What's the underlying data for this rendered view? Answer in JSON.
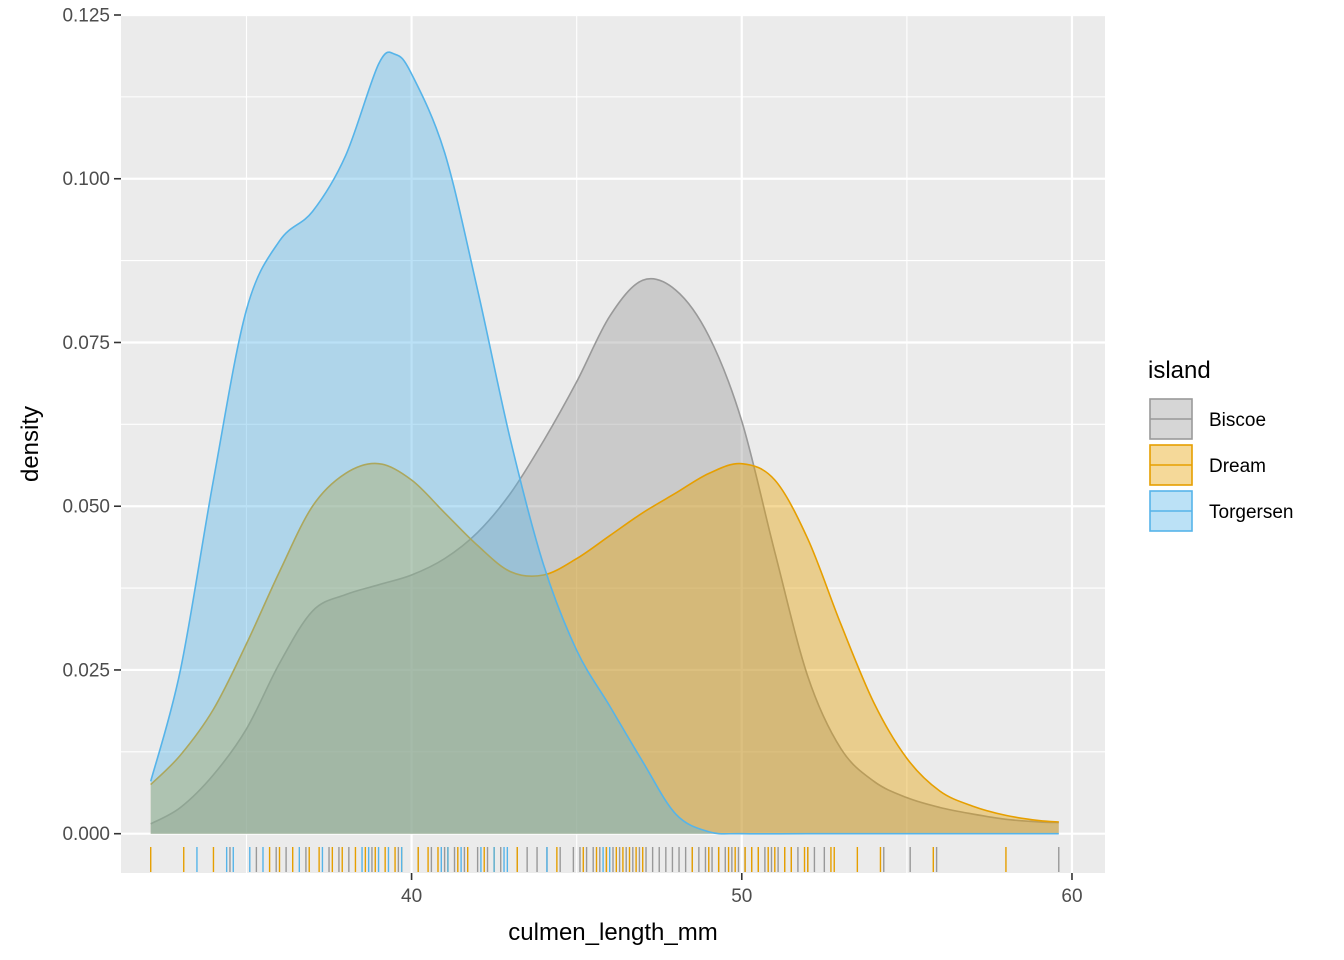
{
  "chart_data": {
    "type": "area",
    "subtype": "density",
    "xlabel": "culmen_length_mm",
    "ylabel": "density",
    "xlim": [
      31.2,
      61.0
    ],
    "ylim": [
      -0.006,
      0.125
    ],
    "x_ticks": [
      40,
      50,
      60
    ],
    "x_tick_labels": [
      "40",
      "50",
      "60"
    ],
    "y_ticks": [
      0,
      0.025,
      0.05,
      0.075,
      0.1,
      0.125
    ],
    "y_tick_labels": [
      "0.000",
      "0.025",
      "0.050",
      "0.075",
      "0.100",
      "0.125"
    ],
    "grid": true,
    "legend": {
      "title": "island",
      "position": "right",
      "fill_alpha": 0.4
    },
    "series": [
      {
        "name": "Biscoe",
        "color": "#999999",
        "points": [
          [
            32.1,
            0.0015
          ],
          [
            33,
            0.004
          ],
          [
            34,
            0.009
          ],
          [
            35,
            0.016
          ],
          [
            36,
            0.026
          ],
          [
            37,
            0.034
          ],
          [
            38,
            0.0365
          ],
          [
            39,
            0.038
          ],
          [
            40,
            0.0395
          ],
          [
            41,
            0.042
          ],
          [
            42,
            0.046
          ],
          [
            43,
            0.052
          ],
          [
            44,
            0.06
          ],
          [
            45,
            0.069
          ],
          [
            46,
            0.079
          ],
          [
            47,
            0.0845
          ],
          [
            48,
            0.083
          ],
          [
            49,
            0.076
          ],
          [
            50,
            0.063
          ],
          [
            51,
            0.043
          ],
          [
            52,
            0.024
          ],
          [
            53,
            0.013
          ],
          [
            54,
            0.008
          ],
          [
            55,
            0.0055
          ],
          [
            56,
            0.004
          ],
          [
            57,
            0.003
          ],
          [
            58,
            0.0022
          ],
          [
            59,
            0.0018
          ],
          [
            59.6,
            0.0017
          ]
        ],
        "rug": [
          34.5,
          35.3,
          35.9,
          36.2,
          36.8,
          37.5,
          37.8,
          38.1,
          38.8,
          39.6,
          40.2,
          40.6,
          41.0,
          41.3,
          41.6,
          42.0,
          42.3,
          42.7,
          43.2,
          43.5,
          43.8,
          44.1,
          44.5,
          44.9,
          45.1,
          45.3,
          45.5,
          45.7,
          45.9,
          46.1,
          46.3,
          46.5,
          46.7,
          46.9,
          47.1,
          47.3,
          47.5,
          47.7,
          47.9,
          48.1,
          48.3,
          48.5,
          48.7,
          48.9,
          49.1,
          49.3,
          49.5,
          49.7,
          49.9,
          50.1,
          50.3,
          50.5,
          50.7,
          50.9,
          51.1,
          51.3,
          51.5,
          51.7,
          52.0,
          52.2,
          52.5,
          54.3,
          55.1,
          55.9,
          59.6
        ]
      },
      {
        "name": "Dream",
        "color": "#E69F00",
        "points": [
          [
            32.1,
            0.0075
          ],
          [
            33,
            0.012
          ],
          [
            34,
            0.019
          ],
          [
            35,
            0.029
          ],
          [
            36,
            0.04
          ],
          [
            37,
            0.05
          ],
          [
            38,
            0.055
          ],
          [
            39,
            0.0565
          ],
          [
            40,
            0.054
          ],
          [
            41,
            0.049
          ],
          [
            42,
            0.044
          ],
          [
            43,
            0.04
          ],
          [
            44,
            0.0395
          ],
          [
            45,
            0.042
          ],
          [
            46,
            0.0455
          ],
          [
            47,
            0.049
          ],
          [
            48,
            0.052
          ],
          [
            49,
            0.055
          ],
          [
            50,
            0.0565
          ],
          [
            51,
            0.054
          ],
          [
            52,
            0.045
          ],
          [
            53,
            0.032
          ],
          [
            54,
            0.02
          ],
          [
            55,
            0.0115
          ],
          [
            56,
            0.0065
          ],
          [
            57,
            0.0042
          ],
          [
            58,
            0.0028
          ],
          [
            59,
            0.002
          ],
          [
            59.6,
            0.0018
          ]
        ],
        "rug": [
          32.1,
          33.1,
          34.0,
          35.7,
          36.0,
          36.4,
          36.9,
          37.2,
          37.6,
          37.9,
          38.3,
          38.6,
          38.9,
          39.2,
          39.5,
          39.7,
          40.2,
          40.5,
          40.8,
          41.1,
          41.4,
          41.7,
          42.2,
          42.5,
          43.2,
          44.4,
          45.2,
          45.6,
          45.9,
          46.2,
          46.4,
          46.6,
          46.8,
          47.0,
          48.5,
          49.0,
          49.3,
          49.6,
          49.8,
          50.1,
          50.3,
          50.5,
          50.8,
          51.0,
          51.3,
          51.5,
          51.9,
          52.0,
          52.7,
          52.8,
          53.5,
          54.2,
          55.8,
          58.0
        ]
      },
      {
        "name": "Torgersen",
        "color": "#56B4E9",
        "points": [
          [
            32.1,
            0.008
          ],
          [
            33,
            0.025
          ],
          [
            34,
            0.054
          ],
          [
            35,
            0.08
          ],
          [
            36,
            0.0905
          ],
          [
            37,
            0.095
          ],
          [
            38,
            0.1035
          ],
          [
            39,
            0.1175
          ],
          [
            39.5,
            0.119
          ],
          [
            40,
            0.116
          ],
          [
            41,
            0.104
          ],
          [
            42,
            0.083
          ],
          [
            43,
            0.06
          ],
          [
            44,
            0.041
          ],
          [
            45,
            0.028
          ],
          [
            46,
            0.0195
          ],
          [
            47,
            0.011
          ],
          [
            48,
            0.003
          ],
          [
            49,
            0.0003
          ],
          [
            50,
            0.0
          ],
          [
            52,
            0.0
          ],
          [
            55,
            0.0
          ],
          [
            59.6,
            0.0
          ]
        ],
        "rug": [
          33.5,
          34.4,
          34.6,
          35.1,
          35.5,
          36.6,
          37.3,
          38.5,
          38.7,
          39.0,
          39.3,
          39.7,
          40.9,
          41.1,
          41.5,
          42.1,
          42.5,
          42.8,
          42.9,
          44.1,
          45.8,
          46.0
        ]
      }
    ]
  }
}
